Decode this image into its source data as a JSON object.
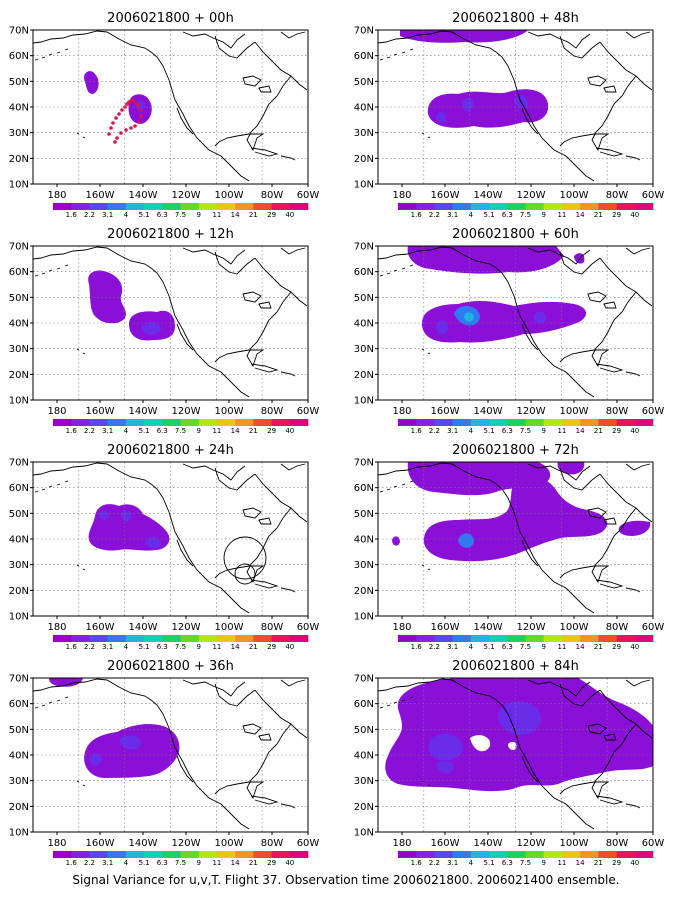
{
  "figure": {
    "caption": "Signal Variance for u,v,T. Flight 37. Observation time 2006021800. 2006021400 ensemble."
  },
  "map": {
    "lat_labels": [
      "70N",
      "60N",
      "50N",
      "40N",
      "30N",
      "20N",
      "10N"
    ],
    "lon_labels": [
      "180",
      "160W",
      "140W",
      "120W",
      "100W",
      "80W",
      "60W"
    ],
    "lat_range": [
      10,
      70
    ],
    "lon_range": [
      "170E",
      "60W"
    ],
    "grid": "dotted"
  },
  "colorbar": {
    "labels": [
      "1.6",
      "2.2",
      "3.1",
      "4",
      "5.1",
      "6.3",
      "7.5",
      "9",
      "11",
      "14",
      "21",
      "29",
      "40"
    ],
    "colors": [
      "#9900cc",
      "#7e25e6",
      "#5a46f2",
      "#2f7cf2",
      "#1eb4e6",
      "#12d2b4",
      "#18d264",
      "#64dc1e",
      "#b4e614",
      "#e6c814",
      "#f0961e",
      "#f0501e",
      "#e6145a",
      "#dc0a78"
    ]
  },
  "panels": [
    {
      "title": "2006021800 + 00h"
    },
    {
      "title": "2006021800 + 48h"
    },
    {
      "title": "2006021800 + 12h"
    },
    {
      "title": "2006021800 + 60h"
    },
    {
      "title": "2006021800 + 24h"
    },
    {
      "title": "2006021800 + 72h"
    },
    {
      "title": "2006021800 + 36h"
    },
    {
      "title": "2006021800 + 84h"
    }
  ]
}
